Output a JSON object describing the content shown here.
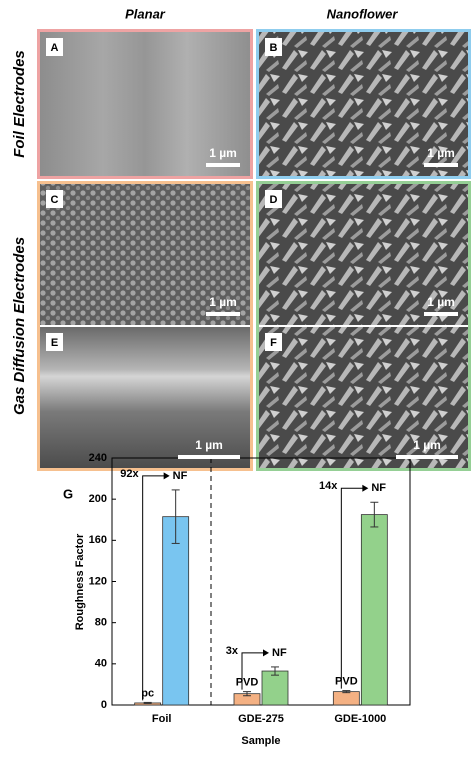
{
  "figure": {
    "column_titles": [
      "Planar",
      "Nanoflower"
    ],
    "row_titles": [
      "Foil Electrodes",
      "Gas Diffusion Electrodes"
    ],
    "panels": [
      {
        "label": "A",
        "scale_bar": "1 µm"
      },
      {
        "label": "B",
        "scale_bar": "1 µm"
      },
      {
        "label": "C",
        "scale_bar": "1 µm"
      },
      {
        "label": "D",
        "scale_bar": "1 µm"
      },
      {
        "label": "E",
        "scale_bar": "1 µm"
      },
      {
        "label": "F",
        "scale_bar": "1 µm"
      }
    ]
  },
  "chart_data": {
    "type": "bar",
    "panel_label": "G",
    "x_label": "Sample",
    "y_label": "Roughness Factor",
    "categories": [
      "Foil",
      "GDE-275",
      "GDE-1000"
    ],
    "series": [
      {
        "colors": [
          "#f4b183",
          "#f4b183",
          "#f4b183"
        ],
        "values": [
          2,
          11,
          13
        ],
        "errors": [
          0.5,
          2,
          1
        ],
        "labels": [
          "pc",
          "PVD",
          "PVD"
        ]
      },
      {
        "colors": [
          "#79c5f0",
          "#93d18b",
          "#93d18b"
        ],
        "values": [
          183,
          33,
          185
        ],
        "errors": [
          26,
          4,
          12
        ],
        "labels": [
          "NF",
          "NF",
          "NF"
        ]
      }
    ],
    "fold_labels": [
      "92x",
      "3x",
      "14x"
    ],
    "ylim": [
      0,
      240
    ],
    "yticks": [
      0,
      40,
      80,
      120,
      160,
      200,
      240
    ]
  }
}
